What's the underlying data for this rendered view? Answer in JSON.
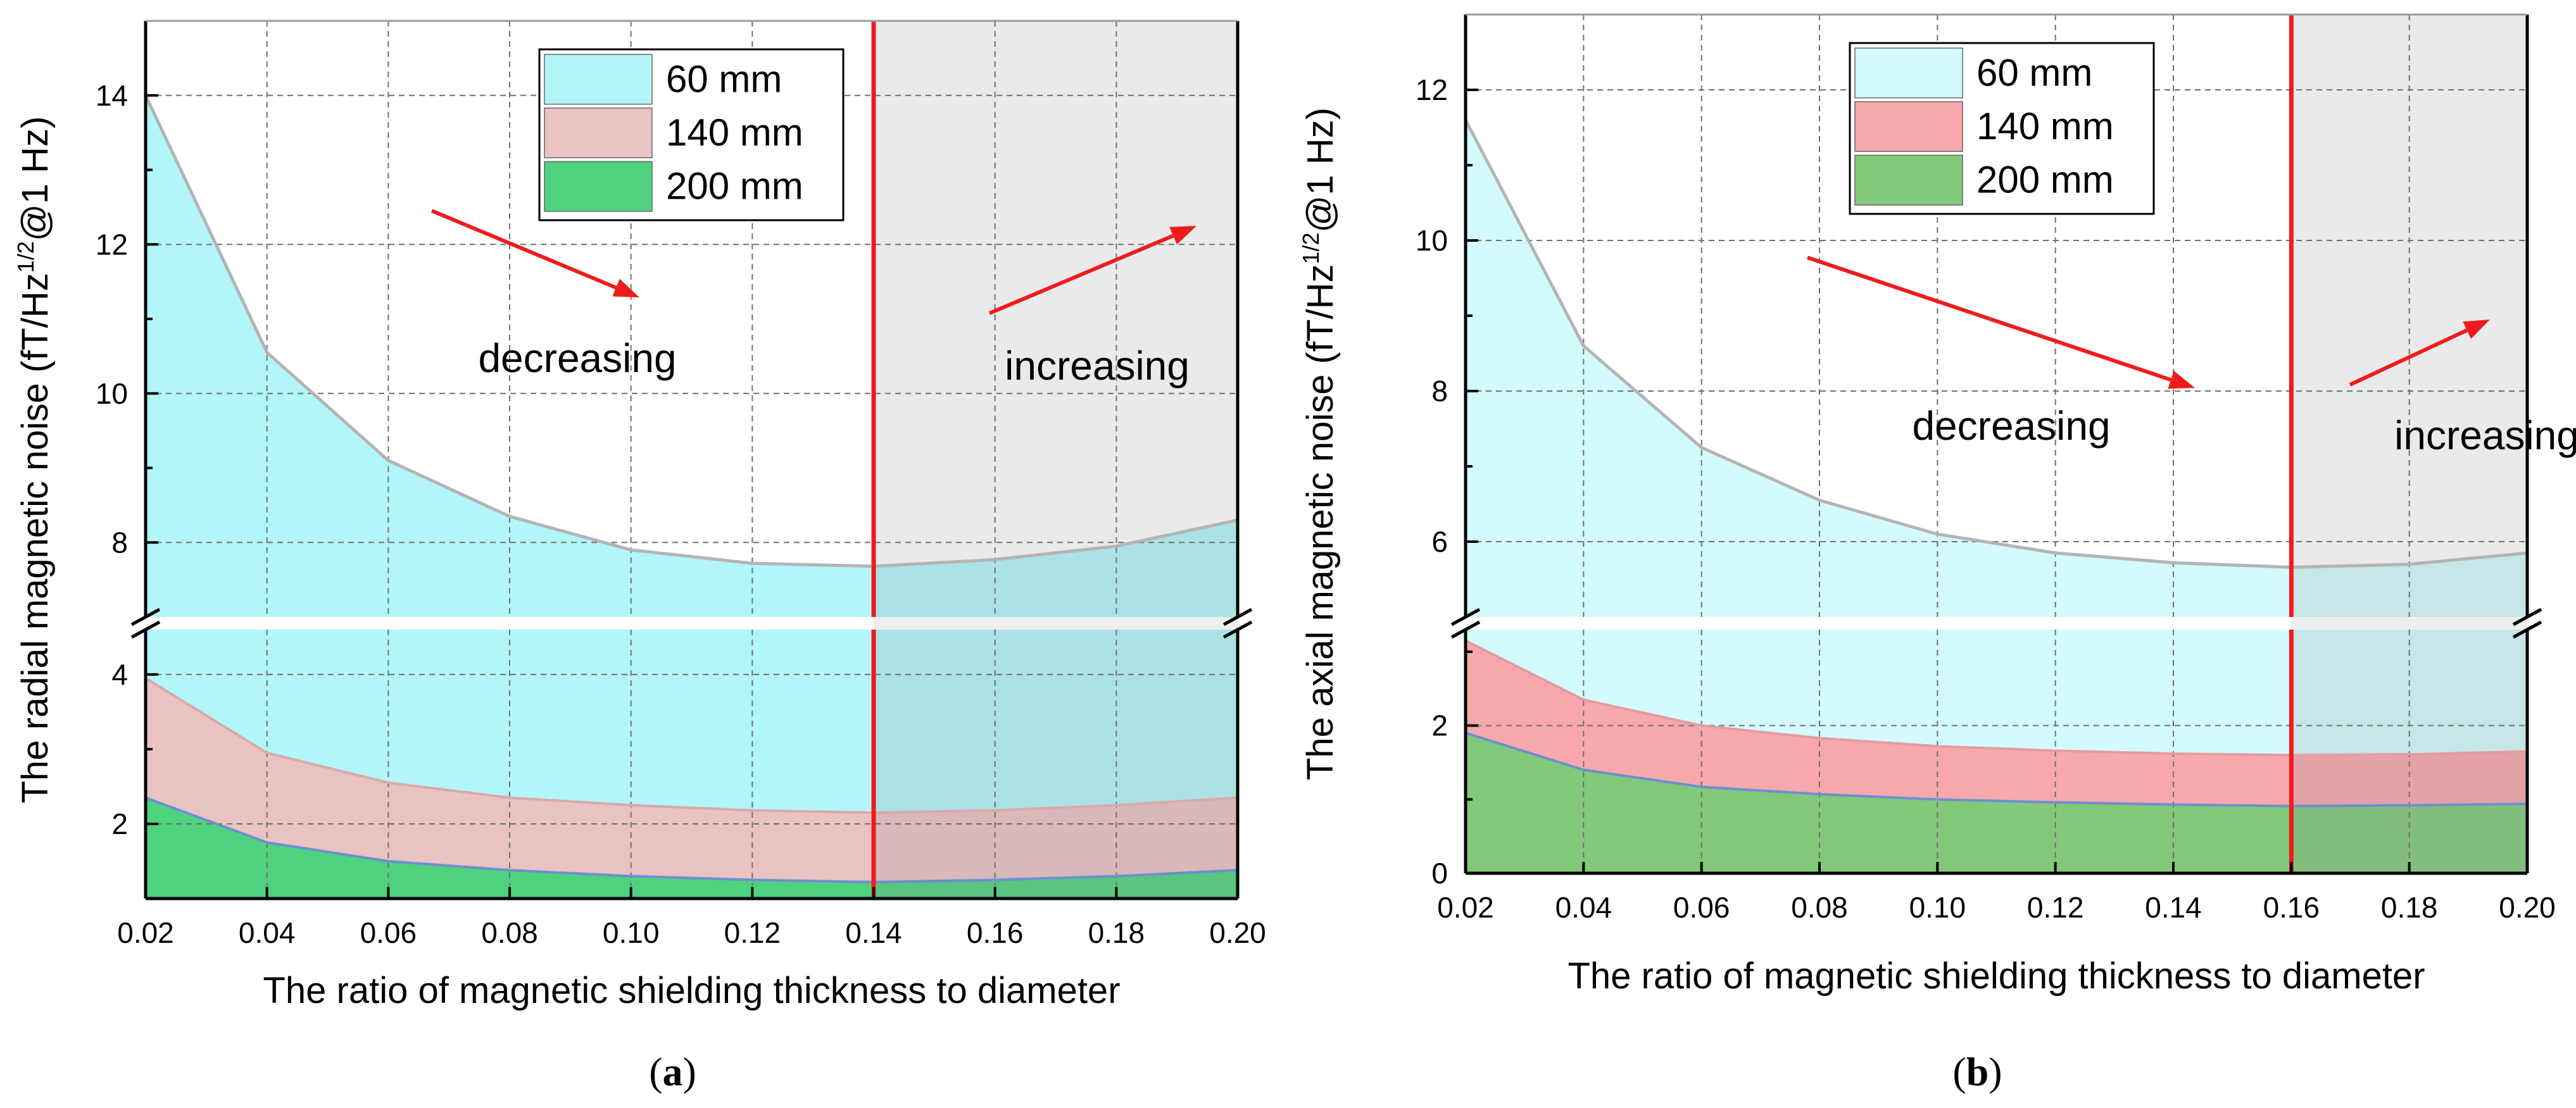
{
  "chart_data": [
    {
      "id": "a",
      "type": "area",
      "caption": "a",
      "xlabel": "The ratio of magnetic shielding thickness to diameter",
      "ylabel_prefix": "The radial magnetic noise (fT/Hz",
      "ylabel_sup": "1/2",
      "ylabel_suffix": "@1 Hz)",
      "x": [
        0.02,
        0.04,
        0.06,
        0.08,
        0.1,
        0.12,
        0.14,
        0.16,
        0.18,
        0.2
      ],
      "xlim": [
        0.02,
        0.2
      ],
      "xticks": [
        "0.02",
        "0.04",
        "0.06",
        "0.08",
        "0.10",
        "0.12",
        "0.14",
        "0.16",
        "0.18",
        "0.20"
      ],
      "axis_break": {
        "lower": [
          1.0,
          4.6
        ],
        "upper": [
          7.0,
          15.0
        ]
      },
      "yticks_lower": [
        "2",
        "4"
      ],
      "yticks_upper": [
        "8",
        "10",
        "12",
        "14"
      ],
      "threshold_x": 0.14,
      "series": [
        {
          "name": "60 mm",
          "color": "#b2f6f9",
          "line": "#b4b4b4",
          "values": [
            14.0,
            10.55,
            9.1,
            8.35,
            7.9,
            7.72,
            7.68,
            7.77,
            7.95,
            8.3
          ]
        },
        {
          "name": "140 mm",
          "color": "#e9c2c2",
          "line": "#d9a9a9",
          "values": [
            3.95,
            2.95,
            2.55,
            2.35,
            2.25,
            2.18,
            2.15,
            2.18,
            2.25,
            2.35
          ]
        },
        {
          "name": "200 mm",
          "color": "#4fd27e",
          "line": "#6d8fd0",
          "values": [
            2.35,
            1.75,
            1.5,
            1.38,
            1.3,
            1.25,
            1.22,
            1.25,
            1.3,
            1.38
          ]
        }
      ],
      "annotations": {
        "left": "decreasing",
        "right": "increasing"
      }
    },
    {
      "id": "b",
      "type": "area",
      "caption": "b",
      "xlabel": "The ratio of magnetic shielding thickness to diameter",
      "ylabel_prefix": "The axial magnetic noise (fT/Hz",
      "ylabel_sup": "1/2",
      "ylabel_suffix": "@1 Hz)",
      "x": [
        0.02,
        0.04,
        0.06,
        0.08,
        0.1,
        0.12,
        0.14,
        0.16,
        0.18,
        0.2
      ],
      "xlim": [
        0.02,
        0.2
      ],
      "xticks": [
        "0.02",
        "0.04",
        "0.06",
        "0.08",
        "0.10",
        "0.12",
        "0.14",
        "0.16",
        "0.18",
        "0.20"
      ],
      "axis_break": {
        "lower": [
          0.0,
          3.3
        ],
        "upper": [
          5.0,
          13.0
        ]
      },
      "yticks_lower": [
        "0",
        "2"
      ],
      "yticks_upper": [
        "6",
        "8",
        "10",
        "12"
      ],
      "threshold_x": 0.16,
      "series": [
        {
          "name": "60 mm",
          "color": "#d3fbfd",
          "line": "#b4b4b4",
          "values": [
            11.6,
            8.6,
            7.25,
            6.55,
            6.1,
            5.85,
            5.72,
            5.66,
            5.7,
            5.85
          ]
        },
        {
          "name": "140 mm",
          "color": "#f6a8ad",
          "line": "#e79aa0",
          "values": [
            3.15,
            2.35,
            2.0,
            1.83,
            1.72,
            1.66,
            1.62,
            1.6,
            1.61,
            1.65
          ]
        },
        {
          "name": "200 mm",
          "color": "#82c97a",
          "line": "#6d8fd0",
          "values": [
            1.9,
            1.4,
            1.17,
            1.07,
            1.0,
            0.96,
            0.93,
            0.91,
            0.92,
            0.94
          ]
        }
      ],
      "annotations": {
        "left": "decreasing",
        "right": "increasing"
      }
    }
  ]
}
